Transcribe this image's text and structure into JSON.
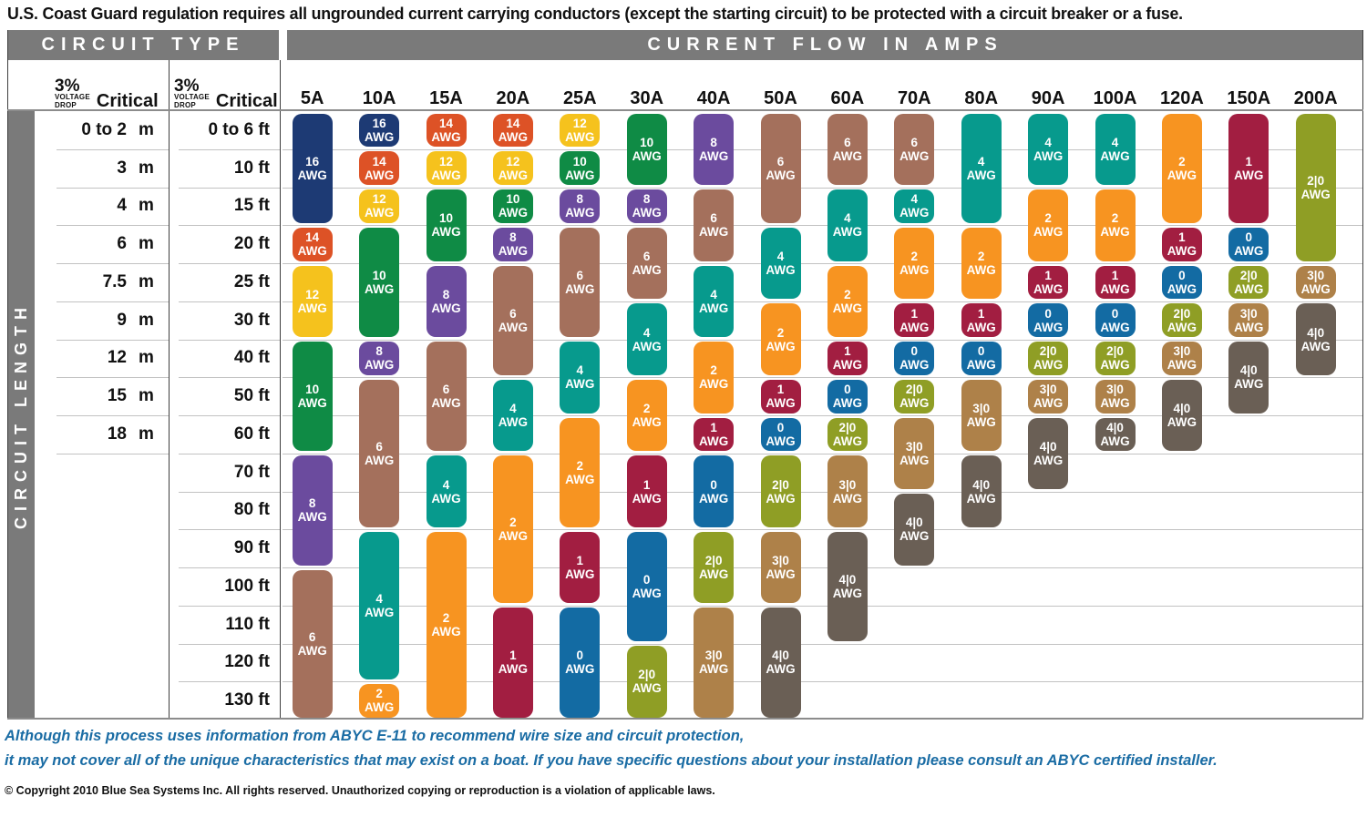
{
  "title": "U.S. Coast Guard regulation requires all ungrounded current carrying conductors (except the starting circuit) to be protected with a circuit breaker or a fuse.",
  "table": {
    "circuit_type_header": "CIRCUIT TYPE",
    "current_flow_header": "CURRENT FLOW IN AMPS",
    "circuit_length_label": "CIRCUIT LENGTH",
    "meter_unit": "m",
    "voltage_drop": {
      "percent": "3%",
      "word1": "VOLTAGE",
      "word2": "DROP",
      "critical": "Critical"
    }
  },
  "chart_data": {
    "type": "table",
    "title": "AWG wire size by circuit length and current flow",
    "amp_columns": [
      "5A",
      "10A",
      "15A",
      "20A",
      "25A",
      "30A",
      "40A",
      "50A",
      "60A",
      "70A",
      "80A",
      "90A",
      "100A",
      "120A",
      "150A",
      "200A"
    ],
    "rows": [
      {
        "m": "0 to 2",
        "ft": "0 to 6 ft"
      },
      {
        "m": "3",
        "ft": "10 ft"
      },
      {
        "m": "4",
        "ft": "15 ft"
      },
      {
        "m": "6",
        "ft": "20 ft"
      },
      {
        "m": "7.5",
        "ft": "25 ft"
      },
      {
        "m": "9",
        "ft": "30 ft"
      },
      {
        "m": "12",
        "ft": "40 ft"
      },
      {
        "m": "15",
        "ft": "50 ft"
      },
      {
        "m": "18",
        "ft": "60 ft"
      },
      {
        "m": "",
        "ft": "70 ft"
      },
      {
        "m": "",
        "ft": "80 ft"
      },
      {
        "m": "",
        "ft": "90 ft"
      },
      {
        "m": "",
        "ft": "100 ft"
      },
      {
        "m": "",
        "ft": "110 ft"
      },
      {
        "m": "",
        "ft": "120 ft"
      },
      {
        "m": "",
        "ft": "130 ft"
      }
    ],
    "awg_unit_label": "AWG",
    "awg_colors": {
      "16": "#1d3a74",
      "14": "#dd5226",
      "12": "#f5c21d",
      "10": "#0f8b45",
      "8": "#6b4b9e",
      "6": "#a4705c",
      "4": "#079a8d",
      "2": "#f79421",
      "1": "#a21e41",
      "0": "#136ba3",
      "2|0": "#8f9e25",
      "3|0": "#ae8149",
      "4|0": "#6a5f55"
    },
    "columns": [
      {
        "amp": "5A",
        "blocks": [
          {
            "awg": "16",
            "from": 1,
            "to": 3
          },
          {
            "awg": "14",
            "from": 4,
            "to": 4
          },
          {
            "awg": "12",
            "from": 5,
            "to": 6
          },
          {
            "awg": "10",
            "from": 7,
            "to": 9
          },
          {
            "awg": "8",
            "from": 10,
            "to": 12
          },
          {
            "awg": "6",
            "from": 13,
            "to": 16
          }
        ]
      },
      {
        "amp": "10A",
        "blocks": [
          {
            "awg": "16",
            "from": 1,
            "to": 1
          },
          {
            "awg": "14",
            "from": 2,
            "to": 2
          },
          {
            "awg": "12",
            "from": 3,
            "to": 3
          },
          {
            "awg": "10",
            "from": 4,
            "to": 6
          },
          {
            "awg": "8",
            "from": 7,
            "to": 7
          },
          {
            "awg": "6",
            "from": 8,
            "to": 11
          },
          {
            "awg": "4",
            "from": 12,
            "to": 15
          },
          {
            "awg": "2",
            "from": 16,
            "to": 16
          }
        ]
      },
      {
        "amp": "15A",
        "blocks": [
          {
            "awg": "14",
            "from": 1,
            "to": 1
          },
          {
            "awg": "12",
            "from": 2,
            "to": 2
          },
          {
            "awg": "10",
            "from": 3,
            "to": 4
          },
          {
            "awg": "8",
            "from": 5,
            "to": 6
          },
          {
            "awg": "6",
            "from": 7,
            "to": 9
          },
          {
            "awg": "4",
            "from": 10,
            "to": 11
          },
          {
            "awg": "2",
            "from": 12,
            "to": 16
          }
        ]
      },
      {
        "amp": "20A",
        "blocks": [
          {
            "awg": "14",
            "from": 1,
            "to": 1
          },
          {
            "awg": "12",
            "from": 2,
            "to": 2
          },
          {
            "awg": "10",
            "from": 3,
            "to": 3
          },
          {
            "awg": "8",
            "from": 4,
            "to": 4
          },
          {
            "awg": "6",
            "from": 5,
            "to": 7
          },
          {
            "awg": "4",
            "from": 8,
            "to": 9
          },
          {
            "awg": "2",
            "from": 10,
            "to": 13
          },
          {
            "awg": "1",
            "from": 14,
            "to": 16
          }
        ]
      },
      {
        "amp": "25A",
        "blocks": [
          {
            "awg": "12",
            "from": 1,
            "to": 1
          },
          {
            "awg": "10",
            "from": 2,
            "to": 2
          },
          {
            "awg": "8",
            "from": 3,
            "to": 3
          },
          {
            "awg": "6",
            "from": 4,
            "to": 6
          },
          {
            "awg": "4",
            "from": 7,
            "to": 8
          },
          {
            "awg": "2",
            "from": 9,
            "to": 11
          },
          {
            "awg": "1",
            "from": 12,
            "to": 13
          },
          {
            "awg": "0",
            "from": 14,
            "to": 16
          }
        ]
      },
      {
        "amp": "30A",
        "blocks": [
          {
            "awg": "10",
            "from": 1,
            "to": 2
          },
          {
            "awg": "8",
            "from": 3,
            "to": 3
          },
          {
            "awg": "6",
            "from": 4,
            "to": 5
          },
          {
            "awg": "4",
            "from": 6,
            "to": 7
          },
          {
            "awg": "2",
            "from": 8,
            "to": 9
          },
          {
            "awg": "1",
            "from": 10,
            "to": 11
          },
          {
            "awg": "0",
            "from": 12,
            "to": 14
          },
          {
            "awg": "2|0",
            "from": 15,
            "to": 16
          }
        ]
      },
      {
        "amp": "40A",
        "blocks": [
          {
            "awg": "8",
            "from": 1,
            "to": 2
          },
          {
            "awg": "6",
            "from": 3,
            "to": 4
          },
          {
            "awg": "4",
            "from": 5,
            "to": 6
          },
          {
            "awg": "2",
            "from": 7,
            "to": 8
          },
          {
            "awg": "1",
            "from": 9,
            "to": 9
          },
          {
            "awg": "0",
            "from": 10,
            "to": 11
          },
          {
            "awg": "2|0",
            "from": 12,
            "to": 13
          },
          {
            "awg": "3|0",
            "from": 14,
            "to": 16
          }
        ]
      },
      {
        "amp": "50A",
        "blocks": [
          {
            "awg": "6",
            "from": 1,
            "to": 3
          },
          {
            "awg": "4",
            "from": 4,
            "to": 5
          },
          {
            "awg": "2",
            "from": 6,
            "to": 7
          },
          {
            "awg": "1",
            "from": 8,
            "to": 8
          },
          {
            "awg": "0",
            "from": 9,
            "to": 9
          },
          {
            "awg": "2|0",
            "from": 10,
            "to": 11
          },
          {
            "awg": "3|0",
            "from": 12,
            "to": 13
          },
          {
            "awg": "4|0",
            "from": 14,
            "to": 16
          }
        ]
      },
      {
        "amp": "60A",
        "blocks": [
          {
            "awg": "6",
            "from": 1,
            "to": 2
          },
          {
            "awg": "4",
            "from": 3,
            "to": 4
          },
          {
            "awg": "2",
            "from": 5,
            "to": 6
          },
          {
            "awg": "1",
            "from": 7,
            "to": 7
          },
          {
            "awg": "0",
            "from": 8,
            "to": 8
          },
          {
            "awg": "2|0",
            "from": 9,
            "to": 9
          },
          {
            "awg": "3|0",
            "from": 10,
            "to": 11
          },
          {
            "awg": "4|0",
            "from": 12,
            "to": 14
          }
        ]
      },
      {
        "amp": "70A",
        "blocks": [
          {
            "awg": "6",
            "from": 1,
            "to": 2
          },
          {
            "awg": "4",
            "from": 3,
            "to": 3
          },
          {
            "awg": "2",
            "from": 4,
            "to": 5
          },
          {
            "awg": "1",
            "from": 6,
            "to": 6
          },
          {
            "awg": "0",
            "from": 7,
            "to": 7
          },
          {
            "awg": "2|0",
            "from": 8,
            "to": 8
          },
          {
            "awg": "3|0",
            "from": 9,
            "to": 10
          },
          {
            "awg": "4|0",
            "from": 11,
            "to": 12
          }
        ]
      },
      {
        "amp": "80A",
        "blocks": [
          {
            "awg": "4",
            "from": 1,
            "to": 3
          },
          {
            "awg": "2",
            "from": 4,
            "to": 5
          },
          {
            "awg": "1",
            "from": 6,
            "to": 6
          },
          {
            "awg": "0",
            "from": 7,
            "to": 7
          },
          {
            "awg": "3|0",
            "from": 8,
            "to": 9
          },
          {
            "awg": "4|0",
            "from": 10,
            "to": 11
          }
        ]
      },
      {
        "amp": "90A",
        "blocks": [
          {
            "awg": "4",
            "from": 1,
            "to": 2
          },
          {
            "awg": "2",
            "from": 3,
            "to": 4
          },
          {
            "awg": "1",
            "from": 5,
            "to": 5
          },
          {
            "awg": "0",
            "from": 6,
            "to": 6
          },
          {
            "awg": "2|0",
            "from": 7,
            "to": 7
          },
          {
            "awg": "3|0",
            "from": 8,
            "to": 8
          },
          {
            "awg": "4|0",
            "from": 9,
            "to": 10
          }
        ]
      },
      {
        "amp": "100A",
        "blocks": [
          {
            "awg": "4",
            "from": 1,
            "to": 2
          },
          {
            "awg": "2",
            "from": 3,
            "to": 4
          },
          {
            "awg": "1",
            "from": 5,
            "to": 5
          },
          {
            "awg": "0",
            "from": 6,
            "to": 6
          },
          {
            "awg": "2|0",
            "from": 7,
            "to": 7
          },
          {
            "awg": "3|0",
            "from": 8,
            "to": 8
          },
          {
            "awg": "4|0",
            "from": 9,
            "to": 9
          }
        ]
      },
      {
        "amp": "120A",
        "blocks": [
          {
            "awg": "2",
            "from": 1,
            "to": 3
          },
          {
            "awg": "1",
            "from": 4,
            "to": 4
          },
          {
            "awg": "0",
            "from": 5,
            "to": 5
          },
          {
            "awg": "2|0",
            "from": 6,
            "to": 6
          },
          {
            "awg": "3|0",
            "from": 7,
            "to": 7
          },
          {
            "awg": "4|0",
            "from": 8,
            "to": 9
          }
        ]
      },
      {
        "amp": "150A",
        "blocks": [
          {
            "awg": "1",
            "from": 1,
            "to": 3
          },
          {
            "awg": "0",
            "from": 4,
            "to": 4
          },
          {
            "awg": "2|0",
            "from": 5,
            "to": 5
          },
          {
            "awg": "3|0",
            "from": 6,
            "to": 6
          },
          {
            "awg": "4|0",
            "from": 7,
            "to": 8
          }
        ]
      },
      {
        "amp": "200A",
        "blocks": [
          {
            "awg": "2|0",
            "from": 1,
            "to": 4
          },
          {
            "awg": "3|0",
            "from": 5,
            "to": 5
          },
          {
            "awg": "4|0",
            "from": 6,
            "to": 7
          }
        ]
      }
    ]
  },
  "footer": {
    "line1": "Although this process uses information from  ABYC E-11 to recommend wire size and circuit protection,",
    "line2": "it may not cover all of the unique characteristics that may exist on a boat. If you have specific questions about your installation please consult an ABYC certified installer.",
    "copyright": "© Copyright 2010 Blue Sea Systems Inc. All rights reserved. Unauthorized copying or reproduction is a violation of applicable laws."
  }
}
